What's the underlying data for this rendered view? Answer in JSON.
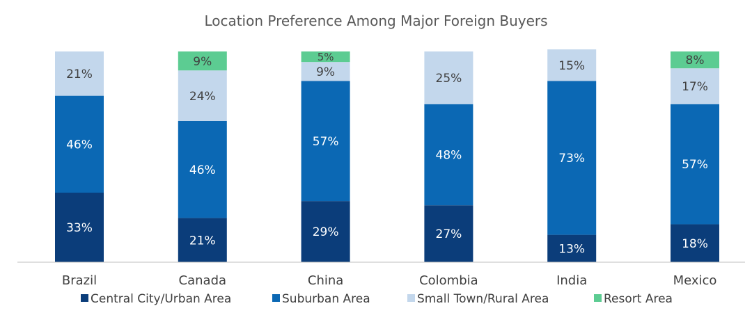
{
  "chart_data": {
    "type": "bar",
    "stacked": true,
    "title": "Location Preference Among Major Foreign Buyers",
    "categories": [
      "Brazil",
      "Canada",
      "China",
      "Colombia",
      "India",
      "Mexico"
    ],
    "series": [
      {
        "name": "Central City/Urban Area",
        "color": "#0b3d7a",
        "label_color": "#ffffff",
        "values": [
          33,
          21,
          29,
          27,
          13,
          18
        ]
      },
      {
        "name": "Suburban Area",
        "color": "#0b68b4",
        "label_color": "#ffffff",
        "values": [
          46,
          46,
          57,
          48,
          73,
          57
        ]
      },
      {
        "name": "Small Town/Rural Area",
        "color": "#c3d7ec",
        "label_color": "#404040",
        "values": [
          21,
          24,
          9,
          25,
          15,
          17
        ]
      },
      {
        "name": "Resort Area",
        "color": "#5ccc92",
        "label_color": "#404040",
        "values": [
          0,
          9,
          5,
          0,
          0,
          8
        ]
      }
    ],
    "value_suffix": "%",
    "ylim": [
      0,
      100
    ],
    "grid": false,
    "legend": "bottom"
  }
}
